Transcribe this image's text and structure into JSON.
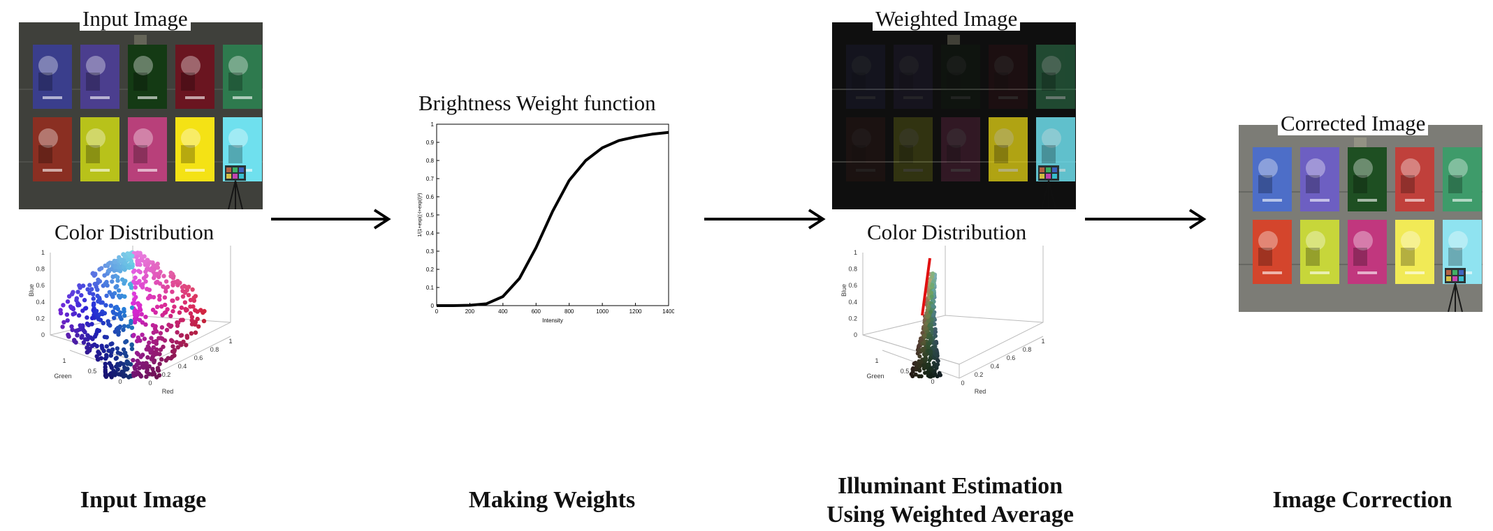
{
  "captions": {
    "input_image": "Input Image",
    "color_distribution_1": "Color Distribution",
    "weight_function": "Brightness Weight function",
    "weighted_image": "Weighted Image",
    "color_distribution_2": "Color Distribution",
    "corrected_image": "Corrected Image"
  },
  "stages": {
    "stage1": "Input Image",
    "stage2": "Making Weights",
    "stage3_line1": "Illuminant Estimation",
    "stage3_line2": "Using Weighted Average",
    "stage4": "Image Correction"
  },
  "scatter_axes": {
    "blue_label": "Blue",
    "green_label": "Green",
    "red_label": "Red",
    "blue_ticks": [
      "0",
      "0.2",
      "0.4",
      "0.6",
      "0.8",
      "1"
    ],
    "green_ticks": [
      "0",
      "0.5",
      "1"
    ],
    "red_ticks": [
      "0",
      "0.2",
      "0.4",
      "0.6",
      "0.8",
      "1"
    ]
  },
  "chart_data": {
    "type": "line",
    "title": "Brightness Weight function",
    "xlabel": "Intensity",
    "ylabel": "1/(1+exp((-I+exp(I)²)",
    "xlim": [
      0,
      1400
    ],
    "ylim": [
      0,
      1
    ],
    "xticks": [
      "0",
      "200",
      "400",
      "600",
      "800",
      "1000",
      "1200",
      "1400"
    ],
    "yticks": [
      "0",
      "0.1",
      "0.2",
      "0.3",
      "0.4",
      "0.5",
      "0.6",
      "0.7",
      "0.8",
      "0.9",
      "1"
    ],
    "series": [
      {
        "x": [
          0,
          100,
          200,
          300,
          400,
          500,
          600,
          700,
          800,
          900,
          1000,
          1100,
          1200,
          1300,
          1400
        ],
        "values": [
          0.0,
          0.0,
          0.002,
          0.01,
          0.05,
          0.15,
          0.32,
          0.52,
          0.69,
          0.8,
          0.87,
          0.91,
          0.93,
          0.945,
          0.955
        ]
      }
    ]
  },
  "colors": {
    "poster_top": [
      "#3a3e8c",
      "#4b3e8e",
      "#143a14",
      "#6a1520",
      "#2e7a4e"
    ],
    "poster_bottom": [
      "#8a2f22",
      "#b8c21a",
      "#b8407a",
      "#f4e215",
      "#6fe0ee"
    ],
    "wall": "#3f403b",
    "corrected_top": [
      "#4d6ec8",
      "#6d5fc2",
      "#1e4f22",
      "#c0403b",
      "#3e9b6a"
    ],
    "corrected_bottom": [
      "#d4452c",
      "#c7d63a",
      "#c1377e",
      "#f1ea56",
      "#8fe3f0"
    ],
    "corrected_wall": "#7c7c76",
    "estimate_line": "#e01010"
  }
}
